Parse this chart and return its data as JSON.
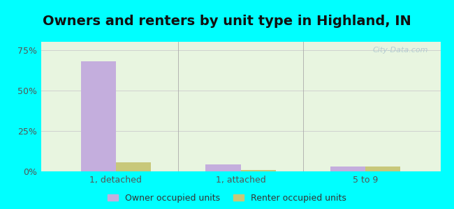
{
  "title": "Owners and renters by unit type in Highland, IN",
  "categories": [
    "1, detached",
    "1, attached",
    "5 to 9"
  ],
  "owner_values": [
    68.0,
    4.2,
    3.2
  ],
  "renter_values": [
    5.5,
    1.0,
    2.8
  ],
  "owner_color": "#c4aedd",
  "renter_color": "#c8c87a",
  "ylim": [
    0,
    80
  ],
  "yticks": [
    0,
    25,
    50,
    75
  ],
  "ytick_labels": [
    "0%",
    "25%",
    "50%",
    "75%"
  ],
  "title_fontsize": 14,
  "axes_bg_color": "#e8f5e0",
  "outer_bg": "#00ffff",
  "legend_owner": "Owner occupied units",
  "legend_renter": "Renter occupied units",
  "bar_width": 0.28,
  "tick_color": "#555555",
  "grid_color": "#cccccc",
  "watermark": "City-Data.com",
  "watermark_color": "#b0c8d0"
}
